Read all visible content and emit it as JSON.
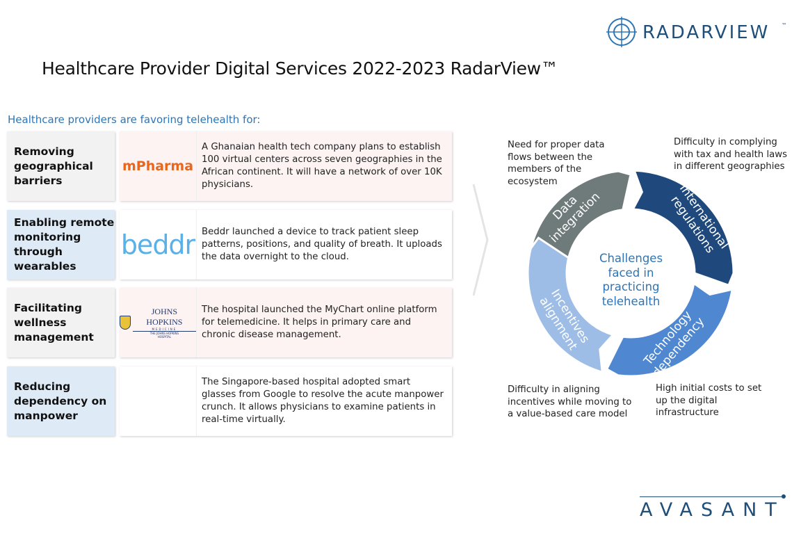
{
  "header": {
    "brand": "RADARVIEW",
    "brand_tm": "™",
    "title": "Healthcare Provider Digital Services 2022-2023 RadarView™"
  },
  "left": {
    "subtitle": "Healthcare providers are favoring telehealth for:",
    "rows": [
      {
        "label": "Removing geographical barriers",
        "logo": "mPharma",
        "text": "A Ghanaian health tech company plans to establish 100 virtual centers across seven geographies in the African continent. It will have a network of over 10K physicians.",
        "label_bg": "#f2f2f2",
        "card_bg": "#fdf3f3"
      },
      {
        "label": "Enabling remote monitoring through wearables",
        "logo": "beddr",
        "text": "Beddr launched a device to track patient sleep patterns, positions, and quality of breath. It uploads the data overnight to the cloud.",
        "label_bg": "#deebf7",
        "card_bg": "#ffffff"
      },
      {
        "label": "Facilitating wellness management",
        "logo": "JOHNS HOPKINS",
        "logo_sub": "MEDICINE",
        "logo_sub2": "THE JOHNS HOPKINS HOSPITAL",
        "text": "The hospital launched the MyChart online platform for telemedicine. It helps in primary care and chronic disease management.",
        "label_bg": "#f2f2f2",
        "card_bg": "#fdf3f3"
      },
      {
        "label": "Reducing dependency on manpower",
        "logo": "",
        "text": "The Singapore-based hospital adopted smart glasses from Google to resolve the acute manpower crunch. It allows physicians to examine patients in real-time virtually.",
        "label_bg": "#deebf7",
        "card_bg": "#ffffff"
      }
    ]
  },
  "cycle": {
    "center": "Challenges faced in practicing telehealth",
    "segments": [
      {
        "label1": "Data",
        "label2": "integration",
        "color": "#6f7b7a",
        "note": "Need for proper data flows between the members of the ecosystem"
      },
      {
        "label1": "International",
        "label2": "regulations",
        "color": "#1f497d",
        "note": "Difficulty in complying with tax and health laws in different geographies"
      },
      {
        "label1": "Technology",
        "label2": "dependency",
        "color": "#4f87d0",
        "note": "High initial costs to set up the digital infrastructure"
      },
      {
        "label1": "Incentives",
        "label2": "alignment",
        "color": "#9dbde6",
        "note": "Difficulty in aligning incentives while moving to a value-based care model"
      }
    ]
  },
  "footer": {
    "brand": "AVASANT"
  }
}
